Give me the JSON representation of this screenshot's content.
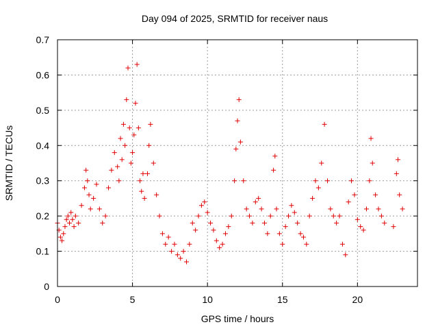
{
  "chart_data": {
    "type": "scatter",
    "title": "Day 094 of 2025, SRMTID for receiver naus",
    "xlabel": "GPS time / hours",
    "ylabel": "SRMTID / TECUs",
    "xlim": [
      0,
      24
    ],
    "ylim": [
      0,
      0.7
    ],
    "x_ticks": [
      0,
      5,
      10,
      15,
      20
    ],
    "y_ticks": [
      0,
      0.1,
      0.2,
      0.3,
      0.4,
      0.5,
      0.6,
      0.7
    ],
    "x_tick_labels": [
      "0",
      "5",
      "10",
      "15",
      "20"
    ],
    "y_tick_labels": [
      "0",
      "0.1",
      "0.2",
      "0.3",
      "0.4",
      "0.5",
      "0.6",
      "0.7"
    ],
    "grid": true,
    "marker": "+",
    "color": "#e00000",
    "series": [
      {
        "name": "SRMTID",
        "points": [
          [
            0.0,
            0.18
          ],
          [
            0.1,
            0.16
          ],
          [
            0.2,
            0.14
          ],
          [
            0.3,
            0.13
          ],
          [
            0.4,
            0.15
          ],
          [
            0.5,
            0.17
          ],
          [
            0.6,
            0.19
          ],
          [
            0.7,
            0.2
          ],
          [
            0.8,
            0.18
          ],
          [
            0.9,
            0.21
          ],
          [
            1.0,
            0.19
          ],
          [
            1.1,
            0.17
          ],
          [
            1.2,
            0.2
          ],
          [
            1.4,
            0.18
          ],
          [
            1.6,
            0.23
          ],
          [
            1.8,
            0.28
          ],
          [
            1.9,
            0.33
          ],
          [
            2.0,
            0.3
          ],
          [
            2.1,
            0.26
          ],
          [
            2.2,
            0.22
          ],
          [
            2.4,
            0.25
          ],
          [
            2.6,
            0.29
          ],
          [
            2.8,
            0.22
          ],
          [
            3.0,
            0.18
          ],
          [
            3.2,
            0.2
          ],
          [
            3.4,
            0.28
          ],
          [
            3.6,
            0.33
          ],
          [
            3.8,
            0.38
          ],
          [
            4.0,
            0.34
          ],
          [
            4.1,
            0.3
          ],
          [
            4.2,
            0.42
          ],
          [
            4.3,
            0.36
          ],
          [
            4.4,
            0.46
          ],
          [
            4.5,
            0.4
          ],
          [
            4.6,
            0.53
          ],
          [
            4.7,
            0.62
          ],
          [
            4.8,
            0.45
          ],
          [
            4.9,
            0.35
          ],
          [
            5.0,
            0.38
          ],
          [
            5.1,
            0.43
          ],
          [
            5.2,
            0.52
          ],
          [
            5.3,
            0.63
          ],
          [
            5.4,
            0.45
          ],
          [
            5.5,
            0.3
          ],
          [
            5.6,
            0.27
          ],
          [
            5.7,
            0.32
          ],
          [
            5.8,
            0.25
          ],
          [
            6.0,
            0.32
          ],
          [
            6.1,
            0.4
          ],
          [
            6.2,
            0.46
          ],
          [
            6.4,
            0.35
          ],
          [
            6.6,
            0.26
          ],
          [
            6.8,
            0.2
          ],
          [
            7.0,
            0.15
          ],
          [
            7.2,
            0.12
          ],
          [
            7.4,
            0.14
          ],
          [
            7.6,
            0.1
          ],
          [
            7.8,
            0.12
          ],
          [
            8.0,
            0.09
          ],
          [
            8.2,
            0.08
          ],
          [
            8.4,
            0.1
          ],
          [
            8.6,
            0.07
          ],
          [
            8.8,
            0.12
          ],
          [
            9.0,
            0.18
          ],
          [
            9.2,
            0.16
          ],
          [
            9.4,
            0.2
          ],
          [
            9.6,
            0.23
          ],
          [
            9.8,
            0.24
          ],
          [
            10.0,
            0.21
          ],
          [
            10.2,
            0.18
          ],
          [
            10.4,
            0.16
          ],
          [
            10.6,
            0.13
          ],
          [
            10.8,
            0.11
          ],
          [
            11.0,
            0.12
          ],
          [
            11.2,
            0.15
          ],
          [
            11.4,
            0.17
          ],
          [
            11.6,
            0.2
          ],
          [
            11.8,
            0.3
          ],
          [
            11.9,
            0.39
          ],
          [
            12.0,
            0.47
          ],
          [
            12.1,
            0.53
          ],
          [
            12.2,
            0.41
          ],
          [
            12.4,
            0.3
          ],
          [
            12.6,
            0.22
          ],
          [
            12.8,
            0.2
          ],
          [
            13.0,
            0.18
          ],
          [
            13.2,
            0.24
          ],
          [
            13.4,
            0.25
          ],
          [
            13.6,
            0.22
          ],
          [
            13.8,
            0.18
          ],
          [
            14.0,
            0.15
          ],
          [
            14.2,
            0.2
          ],
          [
            14.4,
            0.33
          ],
          [
            14.5,
            0.37
          ],
          [
            14.6,
            0.22
          ],
          [
            14.8,
            0.15
          ],
          [
            15.0,
            0.12
          ],
          [
            15.2,
            0.17
          ],
          [
            15.4,
            0.2
          ],
          [
            15.6,
            0.23
          ],
          [
            15.8,
            0.21
          ],
          [
            16.0,
            0.18
          ],
          [
            16.2,
            0.15
          ],
          [
            16.4,
            0.14
          ],
          [
            16.6,
            0.12
          ],
          [
            16.8,
            0.2
          ],
          [
            17.0,
            0.25
          ],
          [
            17.2,
            0.3
          ],
          [
            17.4,
            0.28
          ],
          [
            17.6,
            0.35
          ],
          [
            17.8,
            0.46
          ],
          [
            18.0,
            0.3
          ],
          [
            18.2,
            0.22
          ],
          [
            18.4,
            0.2
          ],
          [
            18.6,
            0.18
          ],
          [
            18.8,
            0.2
          ],
          [
            19.0,
            0.12
          ],
          [
            19.2,
            0.09
          ],
          [
            19.4,
            0.24
          ],
          [
            19.6,
            0.3
          ],
          [
            19.8,
            0.26
          ],
          [
            20.0,
            0.19
          ],
          [
            20.2,
            0.17
          ],
          [
            20.4,
            0.16
          ],
          [
            20.6,
            0.22
          ],
          [
            20.8,
            0.3
          ],
          [
            20.9,
            0.42
          ],
          [
            21.0,
            0.35
          ],
          [
            21.2,
            0.26
          ],
          [
            21.4,
            0.22
          ],
          [
            21.6,
            0.2
          ],
          [
            21.8,
            0.18
          ],
          [
            22.4,
            0.17
          ],
          [
            22.6,
            0.32
          ],
          [
            22.7,
            0.36
          ],
          [
            22.8,
            0.26
          ],
          [
            23.0,
            0.22
          ]
        ]
      }
    ]
  }
}
